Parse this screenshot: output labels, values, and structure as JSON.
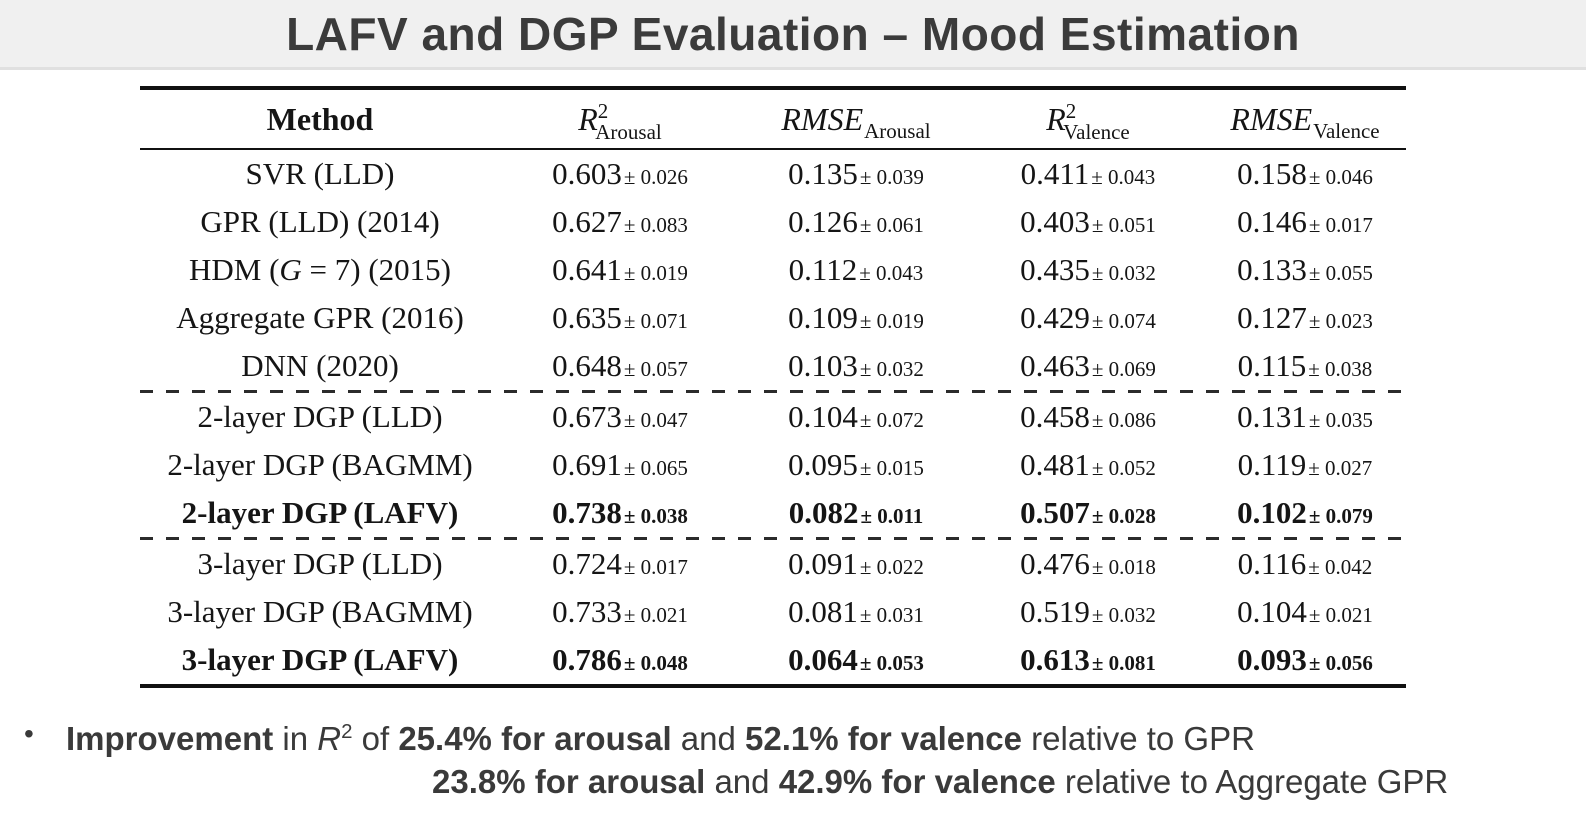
{
  "title": "LAFV and DGP Evaluation – Mood Estimation",
  "colors": {
    "header_bg": "#f0f0f0",
    "header_divider": "#e0e0e0",
    "title_text": "#3b3b3b",
    "table_text": "#151515",
    "rule": "#111111",
    "note_text": "#3a3a3a",
    "body_bg": "#ffffff"
  },
  "table": {
    "pm_sign": "±",
    "headers": [
      {
        "key": "method",
        "label": "Method"
      },
      {
        "key": "r2-arousal",
        "base": "R",
        "sup": "2",
        "sub": "Arousal"
      },
      {
        "key": "rmse-arousal",
        "base": "RMSE",
        "sup": "",
        "sub": "Arousal"
      },
      {
        "key": "r2-valence",
        "base": "R",
        "sup": "2",
        "sub": "Valence"
      },
      {
        "key": "rmse-valence",
        "base": "RMSE",
        "sup": "",
        "sub": "Valence"
      }
    ],
    "rows": [
      {
        "sep": false,
        "bold": false,
        "method": [
          {
            "t": "SVR (LLD)",
            "i": false
          }
        ],
        "cells": [
          {
            "v": "0.603",
            "pm": "0.026"
          },
          {
            "v": "0.135",
            "pm": "0.039"
          },
          {
            "v": "0.411",
            "pm": "0.043"
          },
          {
            "v": "0.158",
            "pm": "0.046"
          }
        ]
      },
      {
        "sep": false,
        "bold": false,
        "method": [
          {
            "t": "GPR (LLD) (2014)",
            "i": false
          }
        ],
        "cells": [
          {
            "v": "0.627",
            "pm": "0.083"
          },
          {
            "v": "0.126",
            "pm": "0.061"
          },
          {
            "v": "0.403",
            "pm": "0.051"
          },
          {
            "v": "0.146",
            "pm": "0.017"
          }
        ]
      },
      {
        "sep": false,
        "bold": false,
        "method": [
          {
            "t": "HDM (",
            "i": false
          },
          {
            "t": "G",
            "i": true
          },
          {
            "t": " = 7) (2015)",
            "i": false
          }
        ],
        "cells": [
          {
            "v": "0.641",
            "pm": "0.019"
          },
          {
            "v": "0.112",
            "pm": "0.043"
          },
          {
            "v": "0.435",
            "pm": "0.032"
          },
          {
            "v": "0.133",
            "pm": "0.055"
          }
        ]
      },
      {
        "sep": false,
        "bold": false,
        "method": [
          {
            "t": "Aggregate GPR (2016)",
            "i": false
          }
        ],
        "cells": [
          {
            "v": "0.635",
            "pm": "0.071"
          },
          {
            "v": "0.109",
            "pm": "0.019"
          },
          {
            "v": "0.429",
            "pm": "0.074"
          },
          {
            "v": "0.127",
            "pm": "0.023"
          }
        ]
      },
      {
        "sep": false,
        "bold": false,
        "method": [
          {
            "t": "DNN (2020)",
            "i": false
          }
        ],
        "cells": [
          {
            "v": "0.648",
            "pm": "0.057"
          },
          {
            "v": "0.103",
            "pm": "0.032"
          },
          {
            "v": "0.463",
            "pm": "0.069"
          },
          {
            "v": "0.115",
            "pm": "0.038"
          }
        ]
      },
      {
        "sep": true,
        "bold": false,
        "method": [
          {
            "t": "2-layer DGP (LLD)",
            "i": false
          }
        ],
        "cells": [
          {
            "v": "0.673",
            "pm": "0.047"
          },
          {
            "v": "0.104",
            "pm": "0.072"
          },
          {
            "v": "0.458",
            "pm": "0.086"
          },
          {
            "v": "0.131",
            "pm": "0.035"
          }
        ]
      },
      {
        "sep": false,
        "bold": false,
        "method": [
          {
            "t": "2-layer DGP (BAGMM)",
            "i": false
          }
        ],
        "cells": [
          {
            "v": "0.691",
            "pm": "0.065"
          },
          {
            "v": "0.095",
            "pm": "0.015"
          },
          {
            "v": "0.481",
            "pm": "0.052"
          },
          {
            "v": "0.119",
            "pm": "0.027"
          }
        ]
      },
      {
        "sep": false,
        "bold": true,
        "method": [
          {
            "t": "2-layer DGP (LAFV)",
            "i": false
          }
        ],
        "cells": [
          {
            "v": "0.738",
            "pm": "0.038"
          },
          {
            "v": "0.082",
            "pm": "0.011"
          },
          {
            "v": "0.507",
            "pm": "0.028"
          },
          {
            "v": "0.102",
            "pm": "0.079"
          }
        ]
      },
      {
        "sep": true,
        "bold": false,
        "method": [
          {
            "t": "3-layer DGP (LLD)",
            "i": false
          }
        ],
        "cells": [
          {
            "v": "0.724",
            "pm": "0.017"
          },
          {
            "v": "0.091",
            "pm": "0.022"
          },
          {
            "v": "0.476",
            "pm": "0.018"
          },
          {
            "v": "0.116",
            "pm": "0.042"
          }
        ]
      },
      {
        "sep": false,
        "bold": false,
        "method": [
          {
            "t": "3-layer DGP (BAGMM)",
            "i": false
          }
        ],
        "cells": [
          {
            "v": "0.733",
            "pm": "0.021"
          },
          {
            "v": "0.081",
            "pm": "0.031"
          },
          {
            "v": "0.519",
            "pm": "0.032"
          },
          {
            "v": "0.104",
            "pm": "0.021"
          }
        ]
      },
      {
        "sep": false,
        "bold": true,
        "method": [
          {
            "t": "3-layer DGP (LAFV)",
            "i": false
          }
        ],
        "cells": [
          {
            "v": "0.786",
            "pm": "0.048"
          },
          {
            "v": "0.064",
            "pm": "0.053"
          },
          {
            "v": "0.613",
            "pm": "0.081"
          },
          {
            "v": "0.093",
            "pm": "0.056"
          }
        ]
      }
    ]
  },
  "notes": {
    "bullet": "•",
    "line1": [
      {
        "t": "Improvement",
        "style": "b"
      },
      {
        "t": " in ",
        "style": "n"
      },
      {
        "t": "R",
        "style": "i"
      },
      {
        "t": "2",
        "style": "sup"
      },
      {
        "t": " of ",
        "style": "n"
      },
      {
        "t": "25.4% for arousal",
        "style": "b"
      },
      {
        "t": " and ",
        "style": "n"
      },
      {
        "t": "52.1% for valence",
        "style": "b"
      },
      {
        "t": " relative to GPR",
        "style": "n"
      }
    ],
    "line2": [
      {
        "t": "23.8% for arousal",
        "style": "b"
      },
      {
        "t": " and ",
        "style": "n"
      },
      {
        "t": "42.9% for valence",
        "style": "b"
      },
      {
        "t": " relative to Aggregate GPR",
        "style": "n"
      }
    ]
  }
}
